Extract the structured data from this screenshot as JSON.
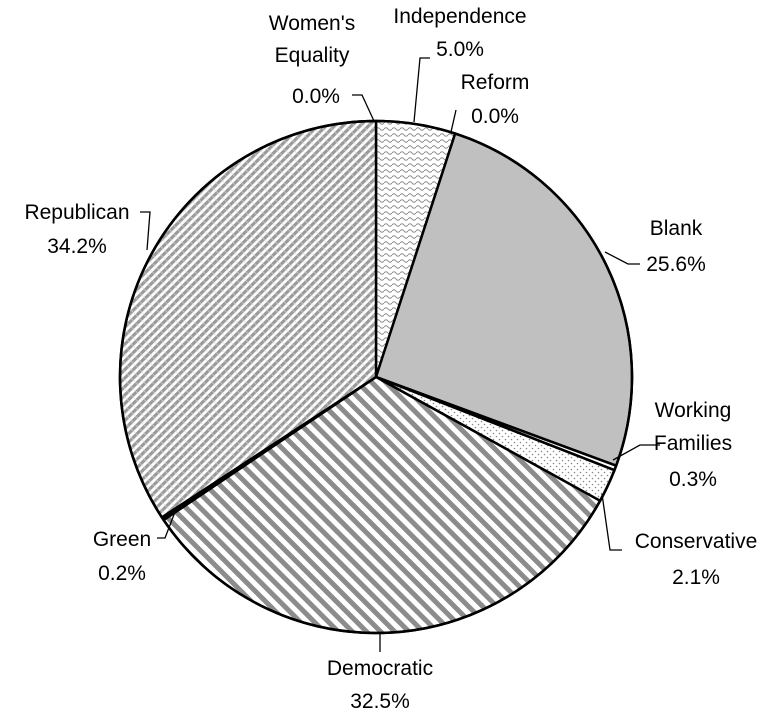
{
  "chart_data": {
    "type": "pie",
    "title": "",
    "start_angle_deg": 0,
    "direction": "clockwise",
    "legend": "none",
    "slices": [
      {
        "name": "Independence",
        "value": 5.0,
        "label": "5.0%",
        "fill": "wave"
      },
      {
        "name": "Reform",
        "value": 0.0,
        "label": "0.0%",
        "fill": "white"
      },
      {
        "name": "Blank",
        "value": 25.6,
        "label": "25.6%",
        "fill": "#c0c0c0"
      },
      {
        "name": "Working Families",
        "value": 0.3,
        "label": "0.3%",
        "fill": "white"
      },
      {
        "name": "Conservative",
        "value": 2.1,
        "label": "2.1%",
        "fill": "dots"
      },
      {
        "name": "Democratic",
        "value": 32.5,
        "label": "32.5%",
        "fill": "diagonal-stripes"
      },
      {
        "name": "Green",
        "value": 0.2,
        "label": "0.2%",
        "fill": "#000000"
      },
      {
        "name": "Republican",
        "value": 34.2,
        "label": "34.2%",
        "fill": "fine-diagonal-checker"
      },
      {
        "name": "Women's Equality",
        "value": 0.0,
        "label": "0.0%",
        "fill": "white"
      }
    ]
  }
}
